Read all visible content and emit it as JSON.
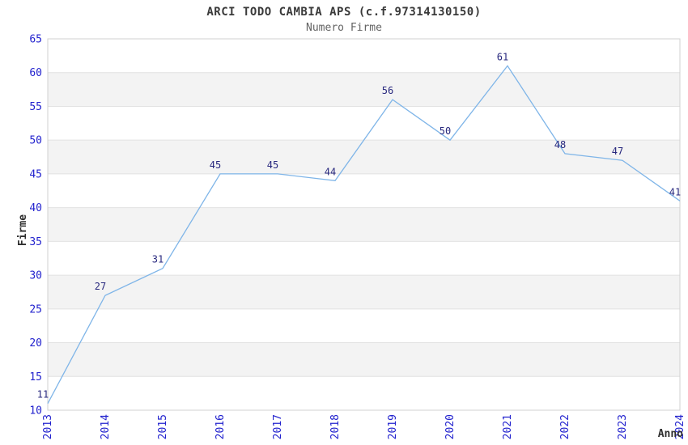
{
  "chart_data": {
    "type": "line",
    "title": "ARCI TODO CAMBIA APS (c.f.97314130150)",
    "subtitle": "Numero Firme",
    "xlabel": "Anno",
    "ylabel": "Firme",
    "categories": [
      "2013",
      "2014",
      "2015",
      "2016",
      "2017",
      "2018",
      "2019",
      "2020",
      "2021",
      "2022",
      "2023",
      "2024"
    ],
    "series": [
      {
        "name": "Numero Firme",
        "values": [
          11,
          27,
          31,
          45,
          45,
          44,
          56,
          50,
          61,
          48,
          47,
          41
        ]
      }
    ],
    "ylim": [
      10,
      65
    ],
    "ytick_step": 5,
    "grid": "horizontal-bands",
    "legend": "none",
    "colors": {
      "line": "#7FB5E8",
      "tick_label": "#2323CE",
      "data_label": "#28287E",
      "band": "#F3F3F3",
      "gridline": "#E2E2E2",
      "plot_border": "#D0D0D0",
      "title": "#3A3A3A",
      "subtitle": "#636363",
      "axis_title": "#2E2E2E",
      "background": "#FFFFFF"
    }
  }
}
